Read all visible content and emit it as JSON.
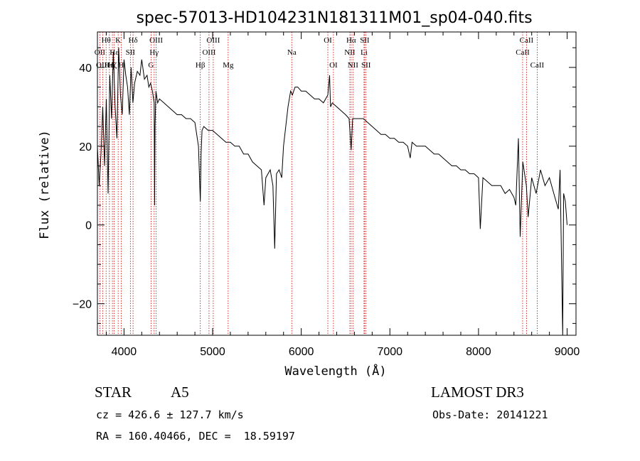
{
  "chart_data": {
    "type": "line",
    "title": "spec-57013-HD104231N181311M01_sp04-040.fits",
    "xlabel": "Wavelength (Å)",
    "ylabel": "Flux (relative)",
    "xlim": [
      3700,
      9100
    ],
    "ylim": [
      -28,
      49
    ],
    "xticks": [
      4000,
      5000,
      6000,
      7000,
      8000,
      9000
    ],
    "yticks": [
      -20,
      0,
      20,
      40
    ],
    "grid": false,
    "legend": "none",
    "line_color": "#000000",
    "marker_color": "#cc0000",
    "series": [
      {
        "x": [
          3700,
          3720,
          3740,
          3760,
          3780,
          3800,
          3820,
          3840,
          3860,
          3880,
          3900,
          3920,
          3940,
          3960,
          3980,
          4000,
          4020,
          4040,
          4060,
          4080,
          4100,
          4120,
          4150,
          4180,
          4200,
          4230,
          4260,
          4280,
          4300,
          4320,
          4340,
          4345,
          4350,
          4360,
          4380,
          4400,
          4450,
          4500,
          4550,
          4600,
          4650,
          4700,
          4750,
          4800,
          4840,
          4861,
          4870,
          4880,
          4900,
          4950,
          5000,
          5050,
          5100,
          5150,
          5200,
          5250,
          5300,
          5350,
          5400,
          5450,
          5500,
          5550,
          5580,
          5600,
          5650,
          5680,
          5700,
          5720,
          5750,
          5780,
          5800,
          5850,
          5880,
          5900,
          5930,
          5960,
          6000,
          6050,
          6100,
          6150,
          6200,
          6250,
          6300,
          6320,
          6330,
          6350,
          6400,
          6450,
          6500,
          6540,
          6563,
          6580,
          6600,
          6650,
          6700,
          6750,
          6800,
          6850,
          6900,
          6950,
          7000,
          7050,
          7100,
          7150,
          7200,
          7230,
          7250,
          7300,
          7350,
          7400,
          7450,
          7500,
          7550,
          7600,
          7650,
          7700,
          7750,
          7800,
          7850,
          7900,
          7950,
          8000,
          8020,
          8050,
          8100,
          8150,
          8200,
          8250,
          8300,
          8350,
          8400,
          8420,
          8450,
          8470,
          8500,
          8540,
          8560,
          8600,
          8650,
          8700,
          8750,
          8800,
          8850,
          8900,
          8920,
          8950,
          8960,
          8980,
          9000
        ],
        "y": [
          20,
          10,
          18,
          30,
          15,
          32,
          8,
          38,
          27,
          44,
          30,
          22,
          45,
          33,
          28,
          42,
          38,
          35,
          28,
          40,
          31,
          36,
          39,
          38,
          42,
          37,
          38,
          35,
          36,
          34,
          31,
          5,
          25,
          34,
          31,
          32,
          31,
          30,
          29,
          28,
          28,
          27,
          27,
          26,
          20,
          6,
          18,
          24,
          25,
          24,
          24,
          23,
          22,
          21,
          21,
          20,
          20,
          18,
          18,
          16,
          15,
          14,
          5,
          12,
          14,
          10,
          -6,
          13,
          14,
          12,
          20,
          30,
          34,
          33,
          35,
          35,
          34,
          34,
          33,
          32,
          32,
          31,
          33,
          38,
          30,
          31,
          30,
          29,
          28,
          27,
          19,
          27,
          27,
          27,
          27,
          26,
          25,
          24,
          23,
          23,
          22,
          22,
          21,
          21,
          20,
          17,
          21,
          20,
          20,
          20,
          19,
          18,
          18,
          17,
          16,
          15,
          15,
          14,
          14,
          13,
          13,
          12,
          -1,
          12,
          11,
          10,
          10,
          10,
          8,
          9,
          7,
          5,
          22,
          -3,
          16,
          10,
          2,
          12,
          8,
          14,
          10,
          12,
          8,
          4,
          14,
          -28,
          8,
          6,
          0
        ]
      }
    ],
    "lines": [
      {
        "label": "Hθ",
        "x": 3798,
        "row": 1
      },
      {
        "label": "OII",
        "x": 3727,
        "row": 2
      },
      {
        "label": "OIII",
        "x": 3760,
        "row": 3
      },
      {
        "label": "Hη",
        "x": 3835,
        "row": 3
      },
      {
        "label": "K",
        "x": 3934,
        "row": 1
      },
      {
        "label": "Hε",
        "x": 3889,
        "row": 2
      },
      {
        "label": "Hζ",
        "x": 3869,
        "row": 3
      },
      {
        "label": "H",
        "x": 3969,
        "row": 3
      },
      {
        "label": "Hδ",
        "x": 4102,
        "row": 1
      },
      {
        "label": "SII",
        "x": 4072,
        "row": 2
      },
      {
        "label": "OIII",
        "x": 4363,
        "row": 1
      },
      {
        "label": "Hγ",
        "x": 4340,
        "row": 2
      },
      {
        "label": "G",
        "x": 4305,
        "row": 3
      },
      {
        "label": "Hβ",
        "x": 4861,
        "row": 3
      },
      {
        "label": "OIII",
        "x": 5007,
        "row": 1
      },
      {
        "label": "OIII",
        "x": 4959,
        "row": 2
      },
      {
        "label": "Mg",
        "x": 5175,
        "row": 3
      },
      {
        "label": "Na",
        "x": 5893,
        "row": 2
      },
      {
        "label": "OI",
        "x": 6300,
        "row": 1
      },
      {
        "label": "OI",
        "x": 6363,
        "row": 3
      },
      {
        "label": "Hα",
        "x": 6563,
        "row": 1
      },
      {
        "label": "NII",
        "x": 6548,
        "row": 2
      },
      {
        "label": "NII",
        "x": 6583,
        "row": 3
      },
      {
        "label": "SII",
        "x": 6716,
        "row": 1
      },
      {
        "label": "Li",
        "x": 6708,
        "row": 2
      },
      {
        "label": "SII",
        "x": 6731,
        "row": 3
      },
      {
        "label": "CaII",
        "x": 8542,
        "row": 1
      },
      {
        "label": "CaII",
        "x": 8498,
        "row": 2
      },
      {
        "label": "CaII",
        "x": 8662,
        "row": 3
      }
    ]
  },
  "info": {
    "class_label": "STAR",
    "subclass": "A5",
    "survey": "LAMOST DR3",
    "cz": "cz = 426.6 ± 127.7 km/s",
    "obs_date": "Obs-Date: 20141221",
    "radec": "RA = 160.40466, DEC =  18.59197"
  }
}
